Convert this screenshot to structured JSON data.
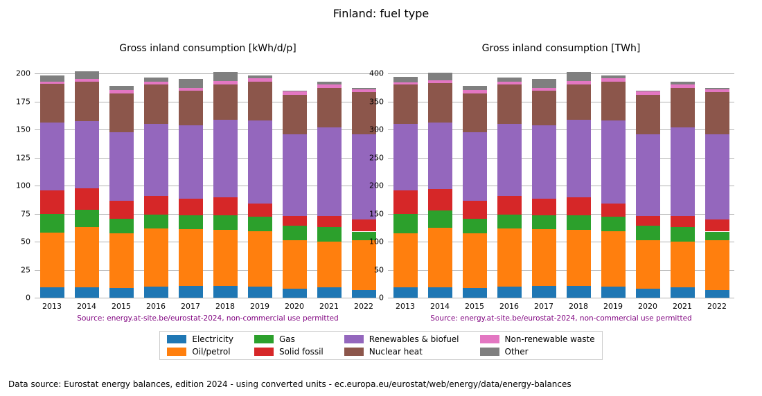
{
  "suptitle": "Finland: fuel type",
  "source_line": "Source: energy.at-site.be/eurostat-2024, non-commercial use permitted",
  "source_color": "#7f007f",
  "footer": "Data source: Eurostat energy balances, edition 2024 - using converted units - ec.europa.eu/eurostat/web/energy/data/energy-balances",
  "grid_color": "#b0b0b0",
  "background_color": "#ffffff",
  "years": [
    "2013",
    "2014",
    "2015",
    "2016",
    "2017",
    "2018",
    "2019",
    "2020",
    "2021",
    "2022"
  ],
  "colors": {
    "electricity": "#1f77b4",
    "oil": "#ff7f0e",
    "gas": "#2ca02c",
    "solid_fossil": "#d62728",
    "renewables": "#9467bd",
    "nuclear": "#8c564b",
    "nonrenew_waste": "#e377c2",
    "other": "#7f7f7f"
  },
  "legend_labels": {
    "electricity": "Electricity",
    "oil": "Oil/petrol",
    "gas": "Gas",
    "solid_fossil": "Solid fossil",
    "renewables": "Renewables & biofuel",
    "nuclear": "Nuclear heat",
    "nonrenew_waste": "Non-renewable waste",
    "other": "Other"
  },
  "series_order": [
    "electricity",
    "oil",
    "gas",
    "solid_fossil",
    "renewables",
    "nuclear",
    "nonrenew_waste",
    "other"
  ],
  "left": {
    "title": "Gross inland consumption [kWh/d/p]",
    "ylim": [
      0,
      210
    ],
    "yticks": [
      0,
      25,
      50,
      75,
      100,
      125,
      150,
      175,
      200
    ],
    "bar_width": 0.7,
    "data": {
      "electricity": [
        9,
        9,
        8.5,
        10,
        10.5,
        10.5,
        10,
        8,
        9,
        7
      ],
      "oil": [
        49,
        54,
        49,
        52,
        50.5,
        50,
        49,
        43,
        41,
        44
      ],
      "gas": [
        17,
        15.5,
        13,
        12,
        12.5,
        13,
        13,
        13,
        13,
        8
      ],
      "solid_fossil": [
        21,
        19,
        16,
        17,
        15,
        16,
        12,
        9,
        10,
        10.5
      ],
      "renewables": [
        60,
        60,
        61,
        64,
        65,
        69,
        74,
        73,
        79,
        76
      ],
      "nuclear": [
        35,
        35,
        35,
        35,
        31,
        32,
        35,
        35,
        35,
        38
      ],
      "nonrenew_waste": [
        2,
        2.5,
        2.5,
        2.5,
        2.5,
        3,
        3,
        3,
        3,
        2.5
      ],
      "other": [
        5,
        7,
        4,
        4,
        8,
        8,
        2,
        1,
        3,
        1
      ]
    }
  },
  "right": {
    "title": "Gross inland consumption [TWh]",
    "ylim": [
      0,
      420
    ],
    "yticks": [
      0,
      50,
      100,
      150,
      200,
      250,
      300,
      350,
      400
    ],
    "bar_width": 0.7,
    "data": {
      "electricity": [
        18,
        18,
        17,
        20,
        21,
        21,
        20,
        16,
        18,
        14
      ],
      "oil": [
        97,
        107,
        98,
        104,
        101,
        100,
        98,
        86,
        82,
        88
      ],
      "gas": [
        34,
        31,
        26,
        24,
        25,
        26,
        26,
        26,
        26,
        16
      ],
      "solid_fossil": [
        42,
        38,
        32,
        34,
        30,
        32,
        24,
        18,
        20,
        21
      ],
      "renewables": [
        119,
        119,
        122,
        128,
        130,
        138,
        148,
        146,
        158,
        152
      ],
      "nuclear": [
        70,
        70,
        70,
        70,
        62,
        64,
        70,
        70,
        70,
        76
      ],
      "nonrenew_waste": [
        4,
        5,
        5,
        5,
        5,
        6,
        6,
        6,
        6,
        5
      ],
      "other": [
        10,
        14,
        8,
        8,
        16,
        16,
        4,
        2,
        6,
        2
      ]
    }
  }
}
